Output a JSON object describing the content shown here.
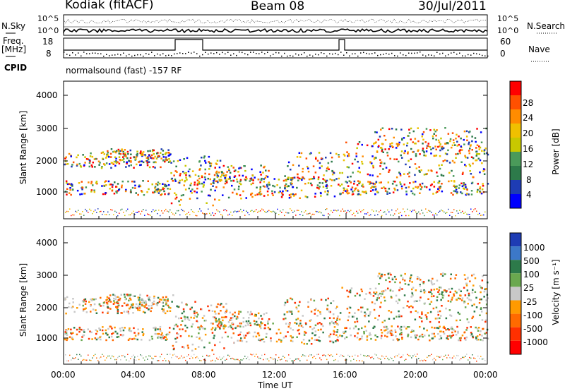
{
  "header": {
    "station": "Kodiak (fitACF)",
    "beam": "Beam 08",
    "date": "30/Jul/2011"
  },
  "top_panels": {
    "nsky_label": "N.Sky",
    "nsky_ticks": [
      "10^5",
      "10^0"
    ],
    "nsearch_label": "N.Search",
    "nsearch_ticks": [
      "10^5",
      "10^0"
    ],
    "freq_label": "Freq.",
    "freq_unit": "[MHz]",
    "freq_ticks": [
      "18",
      "8"
    ],
    "nave_label": "Nave",
    "nave_ticks": [
      "60",
      "0"
    ],
    "cpid_label": "CPID",
    "cpid_text": "normalsound (fast) -157 RF"
  },
  "colors": {
    "frame": "#000000",
    "power_scale": [
      "#0000ff",
      "#1e3cb4",
      "#2d7a4a",
      "#4a9a5a",
      "#c8c800",
      "#f0c000",
      "#ff8c00",
      "#ff5000",
      "#ff0000"
    ],
    "velocity_scale": [
      "#1e3cb4",
      "#3c78c8",
      "#2d7a4a",
      "#6aa84f",
      "#c8c8c8",
      "#ff9a00",
      "#ff6a00",
      "#ff3000",
      "#ff0000"
    ]
  },
  "chart_data": [
    {
      "type": "heatmap",
      "panel": "power",
      "ylabel": "Slant Range [km]",
      "y_ticks": [
        "4000",
        "3000",
        "2000",
        "1000"
      ],
      "ylim": [
        180,
        4500
      ],
      "x_ticks": [
        "00:00",
        "04:00",
        "08:00",
        "12:00",
        "16:00",
        "20:00",
        "00:00"
      ],
      "colorbar_label": "Power [dB]",
      "colorbar_ticks": [
        "28",
        "24",
        "20",
        "16",
        "12",
        "8",
        "4"
      ],
      "colorbar_range": [
        0,
        32
      ]
    },
    {
      "type": "heatmap",
      "panel": "velocity",
      "ylabel": "Slant Range [km]",
      "y_ticks": [
        "4000",
        "3000",
        "2000",
        "1000"
      ],
      "ylim": [
        180,
        4500
      ],
      "x_ticks": [
        "00:00",
        "04:00",
        "08:00",
        "12:00",
        "16:00",
        "20:00",
        "00:00"
      ],
      "xlabel": "Time UT",
      "colorbar_label": "Velocity [m s⁻¹]",
      "colorbar_ticks": [
        "1000",
        "500",
        "100",
        "25",
        "-25",
        "-100",
        "-500",
        "-1000"
      ],
      "colorbar_range": [
        -1000,
        1000
      ]
    }
  ]
}
